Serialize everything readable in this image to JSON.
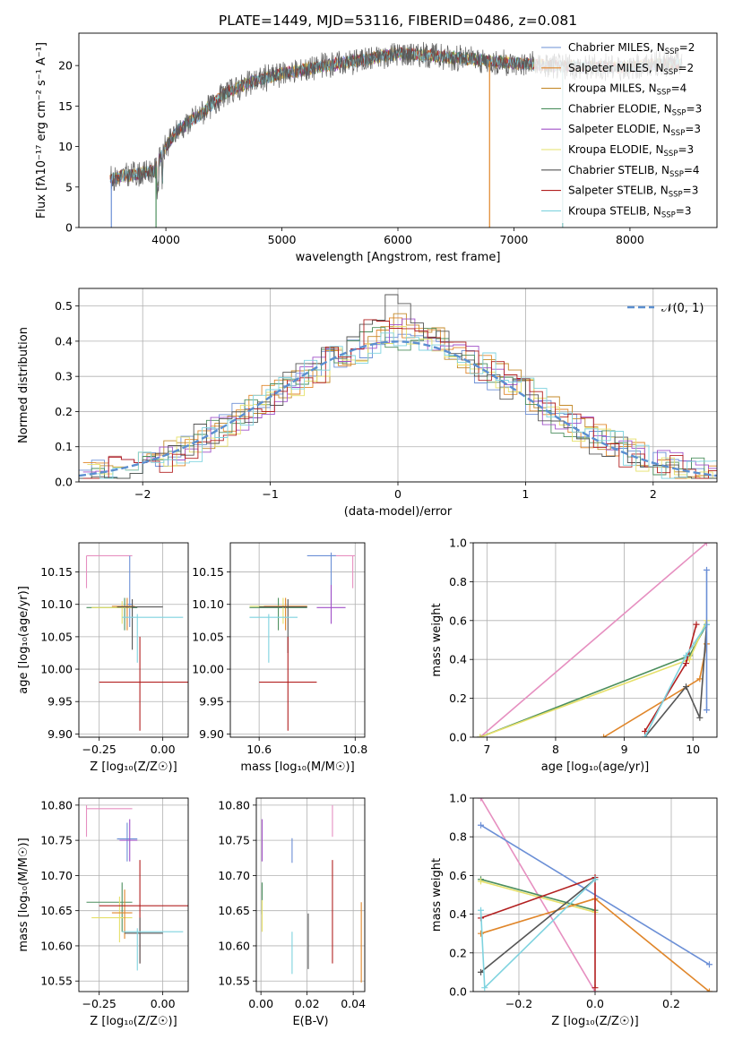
{
  "colors": {
    "chabrier_miles": "#6b8fd6",
    "salpeter_miles": "#e0862a",
    "kroupa_miles": "#c48a2a",
    "chabrier_elodie": "#4c8f5e",
    "salpeter_elodie": "#a050c8",
    "kroupa_elodie": "#e6e06a",
    "chabrier_stelib": "#555555",
    "salpeter_stelib": "#b22020",
    "kroupa_stelib": "#7fd3df",
    "pink": "#e68fc0",
    "normal": "#5b8fd0"
  },
  "chart_data": [
    {
      "id": "spectrum",
      "type": "line",
      "title": "PLATE=1449, MJD=53116, FIBERID=0486, z=0.081",
      "xlabel": "wavelength [Angstrom, rest frame]",
      "ylabel": "Flux [fλ10⁻¹⁷ erg cm⁻² s⁻¹ A⁻¹]",
      "xlim": [
        3250,
        8750
      ],
      "ylim": [
        0,
        24
      ],
      "xticks": [
        "4000",
        "5000",
        "6000",
        "7000",
        "8000"
      ],
      "yticks": [
        "0",
        "5",
        "10",
        "15",
        "20"
      ],
      "grid": false,
      "legend_placement": "top-right",
      "legend": [
        {
          "label": "Chabrier MILES, N",
          "sub": "SSP",
          "suffix": "=2",
          "color": "#6b8fd6"
        },
        {
          "label": "Salpeter MILES, N",
          "sub": "SSP",
          "suffix": "=2",
          "color": "#e0862a"
        },
        {
          "label": "Kroupa MILES, N",
          "sub": "SSP",
          "suffix": "=4",
          "color": "#c48a2a"
        },
        {
          "label": "Chabrier ELODIE, N",
          "sub": "SSP",
          "suffix": "=3",
          "color": "#4c8f5e"
        },
        {
          "label": "Salpeter ELODIE, N",
          "sub": "SSP",
          "suffix": "=3",
          "color": "#a050c8"
        },
        {
          "label": "Kroupa ELODIE, N",
          "sub": "SSP",
          "suffix": "=3",
          "color": "#e6e06a"
        },
        {
          "label": "Chabrier STELIB, N",
          "sub": "SSP",
          "suffix": "=4",
          "color": "#555555"
        },
        {
          "label": "Salpeter STELIB, N",
          "sub": "SSP",
          "suffix": "=3",
          "color": "#b22020"
        },
        {
          "label": "Kroupa STELIB, N",
          "sub": "SSP",
          "suffix": "=3",
          "color": "#7fd3df"
        }
      ],
      "continuum": [
        [
          3520,
          6.0
        ],
        [
          3700,
          6.5
        ],
        [
          3900,
          7.0
        ],
        [
          4000,
          10.0
        ],
        [
          4100,
          12.0
        ],
        [
          4300,
          14.0
        ],
        [
          4500,
          16.5
        ],
        [
          4700,
          17.8
        ],
        [
          5000,
          19.0
        ],
        [
          5300,
          19.8
        ],
        [
          5600,
          20.5
        ],
        [
          6000,
          21.5
        ],
        [
          6300,
          21.2
        ],
        [
          6600,
          20.8
        ],
        [
          7000,
          20.3
        ],
        [
          7300,
          20.0
        ],
        [
          7600,
          19.8
        ],
        [
          8000,
          19.8
        ],
        [
          8300,
          20.2
        ],
        [
          8450,
          20.2
        ]
      ]
    },
    {
      "id": "residuals",
      "type": "histogram",
      "xlabel": "(data-model)/error",
      "ylabel": "Normed distribution",
      "xlim": [
        -2.5,
        2.5
      ],
      "ylim": [
        0,
        0.55
      ],
      "xticks": [
        "−2",
        "−1",
        "0",
        "1",
        "2"
      ],
      "yticks": [
        "0.0",
        "0.1",
        "0.2",
        "0.3",
        "0.4",
        "0.5"
      ],
      "grid": true,
      "legend_placement": "top-right",
      "legend": [
        {
          "label": "𝒩(0, 1)",
          "color": "#5b8fd0"
        }
      ],
      "bins": [
        -2.5,
        -2.4,
        -2.3,
        -2.2,
        -2.1,
        -2.0,
        -1.9,
        -1.8,
        -1.7,
        -1.6,
        -1.5,
        -1.4,
        -1.3,
        -1.2,
        -1.1,
        -1.0,
        -0.9,
        -0.8,
        -0.7,
        -0.6,
        -0.5,
        -0.4,
        -0.3,
        -0.2,
        -0.1,
        0.0,
        0.1,
        0.2,
        0.3,
        0.4,
        0.5,
        0.6,
        0.7,
        0.8,
        0.9,
        1.0,
        1.1,
        1.2,
        1.3,
        1.4,
        1.5,
        1.6,
        1.7,
        1.8,
        1.9,
        2.0,
        2.1,
        2.2,
        2.3,
        2.4
      ],
      "peaks": [
        0.42,
        0.46,
        0.45,
        0.42,
        0.47,
        0.44,
        0.52,
        0.49,
        0.41
      ]
    },
    {
      "id": "age_vs_Z",
      "type": "errorbar",
      "xlabel": "Z [log₁₀(Z/Z☉)]",
      "ylabel": "age  [log₁₀(age/yr)]",
      "xlim": [
        -0.33,
        0.1
      ],
      "ylim": [
        9.895,
        10.195
      ],
      "xticks": [
        "−0.25",
        "0.00"
      ],
      "yticks": [
        "9.90",
        "9.95",
        "10.00",
        "10.05",
        "10.10",
        "10.15"
      ],
      "grid": true,
      "points": [
        {
          "x": -0.3,
          "y": 10.175,
          "xlo": -0.3,
          "xhi": -0.12,
          "ylo": 10.125,
          "yhi": 10.175,
          "color": "#e68fc0"
        },
        {
          "x": -0.13,
          "y": 10.1,
          "xlo": -0.14,
          "xhi": -0.12,
          "ylo": 10.065,
          "yhi": 10.175,
          "color": "#6b8fd6"
        },
        {
          "x": -0.15,
          "y": 10.095,
          "xlo": -0.3,
          "xhi": -0.1,
          "ylo": 10.06,
          "yhi": 10.11,
          "color": "#4c8f5e"
        },
        {
          "x": -0.16,
          "y": 10.095,
          "xlo": -0.28,
          "xhi": -0.12,
          "ylo": 10.07,
          "yhi": 10.105,
          "color": "#e6e06a"
        },
        {
          "x": -0.14,
          "y": 10.097,
          "xlo": -0.2,
          "xhi": -0.11,
          "ylo": 10.06,
          "yhi": 10.11,
          "color": "#e0862a"
        },
        {
          "x": -0.12,
          "y": 10.096,
          "xlo": -0.18,
          "xhi": -0.0,
          "ylo": 10.03,
          "yhi": 10.108,
          "color": "#555555"
        },
        {
          "x": -0.1,
          "y": 10.08,
          "xlo": -0.16,
          "xhi": 0.08,
          "ylo": 10.01,
          "yhi": 10.085,
          "color": "#7fd3df"
        },
        {
          "x": -0.09,
          "y": 9.98,
          "xlo": -0.25,
          "xhi": 0.1,
          "ylo": 9.905,
          "yhi": 10.05,
          "color": "#b22020"
        }
      ]
    },
    {
      "id": "age_vs_mass",
      "type": "errorbar",
      "xlabel": "mass [log₁₀(M/M☉)]",
      "ylabel": "",
      "xlim": [
        10.54,
        10.82
      ],
      "ylim": [
        9.895,
        10.195
      ],
      "xticks": [
        "10.6",
        "10.8"
      ],
      "yticks": [
        "9.90",
        "9.95",
        "10.00",
        "10.05",
        "10.10",
        "10.15"
      ],
      "grid": true,
      "points": [
        {
          "x": 10.795,
          "y": 10.175,
          "xlo": 10.75,
          "xhi": 10.8,
          "ylo": 10.125,
          "yhi": 10.175,
          "color": "#e68fc0"
        },
        {
          "x": 10.75,
          "y": 10.175,
          "xlo": 10.7,
          "xhi": 10.76,
          "ylo": 10.1,
          "yhi": 10.18,
          "color": "#6b8fd6"
        },
        {
          "x": 10.75,
          "y": 10.095,
          "xlo": 10.72,
          "xhi": 10.78,
          "ylo": 10.07,
          "yhi": 10.13,
          "color": "#a050c8"
        },
        {
          "x": 10.64,
          "y": 10.095,
          "xlo": 10.58,
          "xhi": 10.7,
          "ylo": 10.06,
          "yhi": 10.11,
          "color": "#4c8f5e"
        },
        {
          "x": 10.65,
          "y": 10.097,
          "xlo": 10.58,
          "xhi": 10.7,
          "ylo": 10.07,
          "yhi": 10.11,
          "color": "#e6e06a"
        },
        {
          "x": 10.655,
          "y": 10.097,
          "xlo": 10.61,
          "xhi": 10.7,
          "ylo": 10.06,
          "yhi": 10.11,
          "color": "#e0862a"
        },
        {
          "x": 10.66,
          "y": 10.096,
          "xlo": 10.6,
          "xhi": 10.7,
          "ylo": 10.025,
          "yhi": 10.108,
          "color": "#555555"
        },
        {
          "x": 10.62,
          "y": 10.08,
          "xlo": 10.58,
          "xhi": 10.68,
          "ylo": 10.01,
          "yhi": 10.085,
          "color": "#7fd3df"
        },
        {
          "x": 10.66,
          "y": 9.98,
          "xlo": 10.6,
          "xhi": 10.72,
          "ylo": 9.905,
          "yhi": 10.05,
          "color": "#b22020"
        }
      ]
    },
    {
      "id": "weight_vs_age",
      "type": "line",
      "xlabel": "age  [log₁₀(age/yr)]",
      "ylabel": "mass weight",
      "xlim": [
        6.8,
        10.35
      ],
      "ylim": [
        0,
        1
      ],
      "xticks": [
        "7",
        "8",
        "9",
        "10"
      ],
      "yticks": [
        "0.0",
        "0.2",
        "0.4",
        "0.6",
        "0.8",
        "1.0"
      ],
      "grid": true,
      "series": [
        {
          "color": "#e68fc0",
          "points": [
            [
              6.9,
              0.0
            ],
            [
              10.2,
              1.0
            ]
          ]
        },
        {
          "color": "#4c8f5e",
          "points": [
            [
              6.9,
              0.0
            ],
            [
              9.95,
              0.42
            ],
            [
              10.2,
              0.58
            ]
          ]
        },
        {
          "color": "#e6e06a",
          "points": [
            [
              6.9,
              0.0
            ],
            [
              9.95,
              0.4
            ],
            [
              10.2,
              0.6
            ]
          ]
        },
        {
          "color": "#e0862a",
          "points": [
            [
              8.7,
              0.0
            ],
            [
              10.1,
              0.3
            ],
            [
              10.2,
              0.48
            ]
          ]
        },
        {
          "color": "#b22020",
          "points": [
            [
              9.3,
              0.03
            ],
            [
              9.9,
              0.38
            ],
            [
              10.05,
              0.58
            ]
          ]
        },
        {
          "color": "#555555",
          "points": [
            [
              9.3,
              0.0
            ],
            [
              9.9,
              0.26
            ],
            [
              10.1,
              0.1
            ],
            [
              10.2,
              0.58
            ]
          ]
        },
        {
          "color": "#7fd3df",
          "points": [
            [
              9.3,
              0.0
            ],
            [
              9.9,
              0.42
            ],
            [
              10.2,
              0.58
            ]
          ]
        },
        {
          "color": "#6b8fd6",
          "points": [
            [
              10.2,
              0.14
            ],
            [
              10.2,
              0.86
            ]
          ]
        }
      ]
    },
    {
      "id": "mass_vs_Z",
      "type": "errorbar",
      "xlabel": "Z [log₁₀(Z/Z☉)]",
      "ylabel": "mass [log₁₀(M/M☉)]",
      "xlim": [
        -0.33,
        0.1
      ],
      "ylim": [
        10.535,
        10.81
      ],
      "xticks": [
        "−0.25",
        "0.00"
      ],
      "yticks": [
        "10.55",
        "10.60",
        "10.65",
        "10.70",
        "10.75",
        "10.80"
      ],
      "grid": true,
      "points": [
        {
          "x": -0.3,
          "y": 10.795,
          "xlo": -0.3,
          "xhi": -0.12,
          "ylo": 10.755,
          "yhi": 10.8,
          "color": "#e68fc0"
        },
        {
          "x": -0.14,
          "y": 10.752,
          "xlo": -0.18,
          "xhi": -0.1,
          "ylo": 10.72,
          "yhi": 10.775,
          "color": "#6b8fd6"
        },
        {
          "x": -0.13,
          "y": 10.75,
          "xlo": -0.17,
          "xhi": -0.1,
          "ylo": 10.72,
          "yhi": 10.78,
          "color": "#a050c8"
        },
        {
          "x": -0.16,
          "y": 10.662,
          "xlo": -0.3,
          "xhi": -0.12,
          "ylo": 10.62,
          "yhi": 10.69,
          "color": "#4c8f5e"
        },
        {
          "x": -0.17,
          "y": 10.64,
          "xlo": -0.28,
          "xhi": -0.12,
          "ylo": 10.605,
          "yhi": 10.67,
          "color": "#e6e06a"
        },
        {
          "x": -0.15,
          "y": 10.647,
          "xlo": -0.2,
          "xhi": -0.12,
          "ylo": 10.61,
          "yhi": 10.68,
          "color": "#e0862a"
        },
        {
          "x": -0.09,
          "y": 10.657,
          "xlo": -0.25,
          "xhi": 0.1,
          "ylo": 10.575,
          "yhi": 10.722,
          "color": "#b22020"
        },
        {
          "x": -0.09,
          "y": 10.618,
          "xlo": -0.15,
          "xhi": -0.0,
          "ylo": 10.575,
          "yhi": 10.64,
          "color": "#555555"
        },
        {
          "x": -0.1,
          "y": 10.62,
          "xlo": -0.16,
          "xhi": 0.08,
          "ylo": 10.565,
          "yhi": 10.625,
          "color": "#7fd3df"
        }
      ]
    },
    {
      "id": "mass_vs_ebv",
      "type": "errorbar",
      "xlabel": "E(B-V)",
      "ylabel": "",
      "xlim": [
        -0.002,
        0.045
      ],
      "ylim": [
        10.535,
        10.81
      ],
      "xticks": [
        "0.00",
        "0.02",
        "0.04"
      ],
      "yticks": [
        "10.55",
        "10.60",
        "10.65",
        "10.70",
        "10.75",
        "10.80"
      ],
      "grid": true,
      "points": [
        {
          "x": 0.031,
          "y": 10.78,
          "xlo": 0.031,
          "xhi": 0.031,
          "ylo": 10.755,
          "yhi": 10.8,
          "color": "#e68fc0"
        },
        {
          "x": 0.0005,
          "y": 10.75,
          "xlo": 0.0005,
          "xhi": 0.0005,
          "ylo": 10.72,
          "yhi": 10.78,
          "color": "#a050c8"
        },
        {
          "x": 0.0135,
          "y": 10.735,
          "xlo": 0.0135,
          "xhi": 0.0135,
          "ylo": 10.718,
          "yhi": 10.753,
          "color": "#6b8fd6"
        },
        {
          "x": 0.0005,
          "y": 10.66,
          "xlo": 0.0005,
          "xhi": 0.0005,
          "ylo": 10.645,
          "yhi": 10.69,
          "color": "#4c8f5e"
        },
        {
          "x": 0.0005,
          "y": 10.64,
          "xlo": 0.0005,
          "xhi": 0.0005,
          "ylo": 10.62,
          "yhi": 10.665,
          "color": "#e6e06a"
        },
        {
          "x": 0.0435,
          "y": 10.605,
          "xlo": 0.0435,
          "xhi": 0.0435,
          "ylo": 10.548,
          "yhi": 10.662,
          "color": "#e0862a"
        },
        {
          "x": 0.031,
          "y": 10.65,
          "xlo": 0.031,
          "xhi": 0.031,
          "ylo": 10.575,
          "yhi": 10.722,
          "color": "#b22020"
        },
        {
          "x": 0.0205,
          "y": 10.605,
          "xlo": 0.0205,
          "xhi": 0.0205,
          "ylo": 10.567,
          "yhi": 10.646,
          "color": "#555555"
        },
        {
          "x": 0.0135,
          "y": 10.59,
          "xlo": 0.0135,
          "xhi": 0.0135,
          "ylo": 10.56,
          "yhi": 10.62,
          "color": "#7fd3df"
        }
      ]
    },
    {
      "id": "weight_vs_Z",
      "type": "line",
      "xlabel": "Z [log₁₀(Z/Z☉)]",
      "ylabel": "mass weight",
      "xlim": [
        -0.32,
        0.32
      ],
      "ylim": [
        0,
        1
      ],
      "xticks": [
        "−0.2",
        "0.0",
        "0.2"
      ],
      "yticks": [
        "0.0",
        "0.2",
        "0.4",
        "0.6",
        "0.8",
        "1.0"
      ],
      "grid": true,
      "series": [
        {
          "color": "#e68fc0",
          "points": [
            [
              -0.3,
              1.0
            ],
            [
              0.0,
              0.0
            ]
          ]
        },
        {
          "color": "#6b8fd6",
          "points": [
            [
              -0.3,
              0.86
            ],
            [
              0.3,
              0.14
            ]
          ]
        },
        {
          "color": "#4c8f5e",
          "points": [
            [
              -0.3,
              0.58
            ],
            [
              0.0,
              0.42
            ]
          ]
        },
        {
          "color": "#e6e06a",
          "points": [
            [
              -0.3,
              0.57
            ],
            [
              0.0,
              0.41
            ]
          ]
        },
        {
          "color": "#e0862a",
          "points": [
            [
              -0.3,
              0.3
            ],
            [
              0.0,
              0.48
            ],
            [
              0.3,
              0.0
            ]
          ]
        },
        {
          "color": "#b22020",
          "points": [
            [
              -0.3,
              0.38
            ],
            [
              0.0,
              0.59
            ],
            [
              0.0,
              0.02
            ]
          ]
        },
        {
          "color": "#555555",
          "points": [
            [
              -0.3,
              0.1
            ],
            [
              0.0,
              0.58
            ]
          ]
        },
        {
          "color": "#7fd3df",
          "points": [
            [
              -0.3,
              0.42
            ],
            [
              -0.29,
              0.02
            ],
            [
              0.0,
              0.58
            ]
          ]
        }
      ]
    }
  ]
}
